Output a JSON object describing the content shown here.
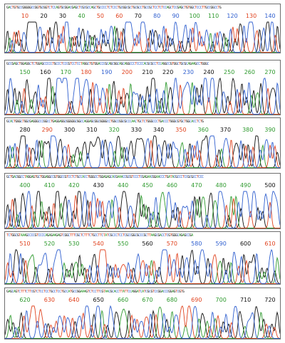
{
  "viewer": {
    "base_colors": {
      "A": "#2e9a2e",
      "C": "#2f5fcf",
      "G": "#111111",
      "T": "#e0431f"
    },
    "panels": [
      {
        "sequence": "GACTGTGCCGGGGGCCGGTGCGGTCTCCAGTGCGGACGAGCTCGCGCCAGCTGCCCCTCTCCCTGCGGCGCTGCGCCTGCCGCTCCTCTCCAGCTCCGAGCTGTGGCTCCCTTGCCGGCCTG",
        "positions": [
          {
            "label": "10",
            "base": "T"
          },
          {
            "label": "20",
            "base": "G"
          },
          {
            "label": "30",
            "base": "G"
          },
          {
            "label": "40",
            "base": "A"
          },
          {
            "label": "50",
            "base": "T"
          },
          {
            "label": "60",
            "base": "T"
          },
          {
            "label": "70",
            "base": "G"
          },
          {
            "label": "80",
            "base": "C"
          },
          {
            "label": "90",
            "base": "C"
          },
          {
            "label": "100",
            "base": "A"
          },
          {
            "label": "110",
            "base": "A"
          },
          {
            "label": "120",
            "base": "C"
          },
          {
            "label": "130",
            "base": "T"
          },
          {
            "label": "140",
            "base": "C"
          }
        ]
      },
      {
        "sequence": "GCCGAGCTGGAGGCTCTGGAGCCCCCTGCCCTCCCGTCCTCCTAGGCTGTGGACCCGCAGCGGCAGCAGGCCCTCCCCACGCGCCTCCAGGCCGTGGCTGCGCAGAAGCCTGGGC",
        "positions": [
          {
            "label": "150",
            "base": "A"
          },
          {
            "label": "160",
            "base": "G"
          },
          {
            "label": "170",
            "base": "A"
          },
          {
            "label": "180",
            "base": "T"
          },
          {
            "label": "190",
            "base": "C"
          },
          {
            "label": "200",
            "base": "T"
          },
          {
            "label": "210",
            "base": "G"
          },
          {
            "label": "220",
            "base": "G"
          },
          {
            "label": "230",
            "base": "C"
          },
          {
            "label": "240",
            "base": "G"
          },
          {
            "label": "250",
            "base": "A"
          },
          {
            "label": "260",
            "base": "A"
          },
          {
            "label": "270",
            "base": "A"
          }
        ]
      },
      {
        "sequence": "GCACTGGGCTGGCGAGGGCCCGGCCTGAGGAGGCGGGGGCGGCCAGGAGCGGCGGGGCCTGGCCGGCGCCCAACTGCTCTGGGCCCTGACCCTGGGCGTGCTGGCACCTCTG",
        "positions": [
          {
            "label": "280",
            "base": "G"
          },
          {
            "label": "290",
            "base": "T"
          },
          {
            "label": "300",
            "base": "G"
          },
          {
            "label": "310",
            "base": "G"
          },
          {
            "label": "320",
            "base": "A"
          },
          {
            "label": "330",
            "base": "G"
          },
          {
            "label": "340",
            "base": "G"
          },
          {
            "label": "350",
            "base": "T"
          },
          {
            "label": "360",
            "base": "A"
          },
          {
            "label": "370",
            "base": "G"
          },
          {
            "label": "380",
            "base": "A"
          },
          {
            "label": "390",
            "base": "A"
          }
        ]
      },
      {
        "sequence": "GCTGACGGCCTAGGAGTGCTGGAGGCCGTGGCCGTCCTCTGCCACCTGGGCCTGGAGAGCACGAAACCGCGTCCCTCGAGAACGGAACCCTGATACGCCCTCCGCGCCTCCC",
        "positions": [
          {
            "label": "400",
            "base": "A"
          },
          {
            "label": "410",
            "base": "A"
          },
          {
            "label": "420",
            "base": "A"
          },
          {
            "label": "430",
            "base": "G"
          },
          {
            "label": "440",
            "base": "A"
          },
          {
            "label": "450",
            "base": "A"
          },
          {
            "label": "460",
            "base": "A"
          },
          {
            "label": "470",
            "base": "A"
          },
          {
            "label": "480",
            "base": "A"
          },
          {
            "label": "490",
            "base": "A"
          },
          {
            "label": "500",
            "base": "G"
          }
        ]
      },
      {
        "sequence": "TCTGGCGTAAAGCCCCGTCCCCAGAGAAGAGTCGGCTTTCGCTCTTTCTGCCTTCTATCGCCCTCCTCGCCGGCGCCCGCTTAAGCGACCTCGTGGGCAGAGCCGA",
        "positions": [
          {
            "label": "510",
            "base": "T"
          },
          {
            "label": "520",
            "base": "A"
          },
          {
            "label": "530",
            "base": "A"
          },
          {
            "label": "540",
            "base": "T"
          },
          {
            "label": "550",
            "base": "A"
          },
          {
            "label": "560",
            "base": "G"
          },
          {
            "label": "570",
            "base": "T"
          },
          {
            "label": "580",
            "base": "C"
          },
          {
            "label": "590",
            "base": "C"
          },
          {
            "label": "600",
            "base": "G"
          },
          {
            "label": "610",
            "base": "T"
          }
        ]
      },
      {
        "sequence": "GAGCAGTCTTTCTTCGTCTCCTCCTGCCTCCTGCCATGCCGGAAAGTCTCCTTCGTAACGCACCTTATTCCAGGATCATCGCGTCCGGACCCGGAGTCGTG",
        "positions": [
          {
            "label": "620",
            "base": "A"
          },
          {
            "label": "630",
            "base": "T"
          },
          {
            "label": "640",
            "base": "T"
          },
          {
            "label": "650",
            "base": "G"
          },
          {
            "label": "660",
            "base": "A"
          },
          {
            "label": "670",
            "base": "A"
          },
          {
            "label": "680",
            "base": "A"
          },
          {
            "label": "690",
            "base": "T"
          },
          {
            "label": "700",
            "base": "A"
          },
          {
            "label": "710",
            "base": "G"
          },
          {
            "label": "720",
            "base": "G"
          }
        ]
      }
    ]
  }
}
